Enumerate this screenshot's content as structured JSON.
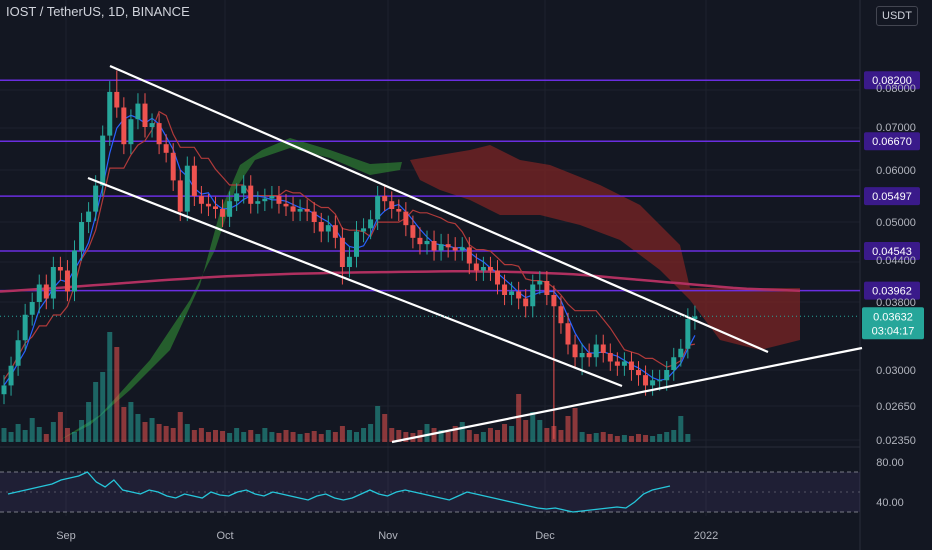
{
  "header": {
    "title": "IOST / TetherUS, 1D, BINANCE",
    "currency_button": "USDT"
  },
  "colors": {
    "background": "#131722",
    "up": "#26a69a",
    "down": "#ef5350",
    "level_line": "#6a2ee0",
    "level_label_bg": "#3a1a8a",
    "trend_line": "#ffffff",
    "ma_line": "#b03060",
    "base_line": "#b03a3a",
    "conversion_line": "#2962ff",
    "cloud_bull": "#2e7d32",
    "cloud_bear": "#7b2424",
    "rsi_line": "#26c6da"
  },
  "chart_data": {
    "type": "candlestick",
    "exchange": "BINANCE",
    "symbol": "IOST/USDT",
    "interval": "1D",
    "x_ticks": [
      "Sep",
      "Oct",
      "Nov",
      "Dec",
      "2022"
    ],
    "price_axis_ticks": [
      "0.08000",
      "0.07000",
      "0.06000",
      "0.05000",
      "0.04400",
      "0.03800",
      "0.03000",
      "0.02650",
      "0.02350"
    ],
    "horizontal_levels": [
      "0.08200",
      "0.06670",
      "0.05497",
      "0.04543",
      "0.03962"
    ],
    "last_price": "0.03632",
    "countdown": "03:04:17",
    "close_path": [
      0.0285,
      0.0305,
      0.0335,
      0.0365,
      0.038,
      0.0405,
      0.0385,
      0.043,
      0.0425,
      0.0395,
      0.0455,
      0.05,
      0.052,
      0.057,
      0.068,
      0.079,
      0.075,
      0.066,
      0.072,
      0.076,
      0.07,
      0.071,
      0.066,
      0.064,
      0.058,
      0.052,
      0.061,
      0.055,
      0.0535,
      0.053,
      0.0525,
      0.051,
      0.054,
      0.0555,
      0.057,
      0.0535,
      0.054,
      0.0545,
      0.055,
      0.0535,
      0.053,
      0.052,
      0.0525,
      0.052,
      0.05,
      0.0485,
      0.0495,
      0.0475,
      0.043,
      0.0445,
      0.0485,
      0.049,
      0.0505,
      0.055,
      0.054,
      0.0525,
      0.052,
      0.0495,
      0.0475,
      0.0465,
      0.047,
      0.0455,
      0.0465,
      0.046,
      0.0455,
      0.046,
      0.0435,
      0.0425,
      0.043,
      0.0425,
      0.0405,
      0.039,
      0.0395,
      0.0385,
      0.0375,
      0.0405,
      0.041,
      0.039,
      0.0375,
      0.0355,
      0.033,
      0.0315,
      0.032,
      0.0315,
      0.033,
      0.032,
      0.031,
      0.0305,
      0.031,
      0.03,
      0.0295,
      0.0285,
      0.029,
      0.029,
      0.03,
      0.0315,
      0.0325,
      0.036,
      0.0363
    ],
    "ma_path": [
      0.0395,
      0.04,
      0.0406,
      0.0412,
      0.0417,
      0.042,
      0.0422,
      0.0423,
      0.0424,
      0.0423,
      0.042,
      0.0413,
      0.0406,
      0.0399,
      0.0396
    ],
    "rsi_axis_ticks": [
      "80.00",
      "40.00"
    ],
    "rsi_levels": [
      70,
      30
    ],
    "rsi_path": [
      48,
      50,
      52,
      54,
      56,
      58,
      62,
      64,
      66,
      70,
      60,
      55,
      62,
      52,
      50,
      48,
      52,
      50,
      46,
      44,
      48,
      46,
      44,
      50,
      47,
      46,
      50,
      52,
      48,
      46,
      50,
      48,
      46,
      44,
      42,
      46,
      48,
      44,
      42,
      44,
      48,
      52,
      48,
      46,
      50,
      52,
      50,
      48,
      46,
      44,
      42,
      46,
      50,
      48,
      46,
      44,
      42,
      40,
      38,
      36,
      34,
      33,
      34,
      32,
      30,
      31,
      32,
      33,
      34,
      35,
      34,
      40,
      48,
      52,
      54,
      56
    ]
  }
}
